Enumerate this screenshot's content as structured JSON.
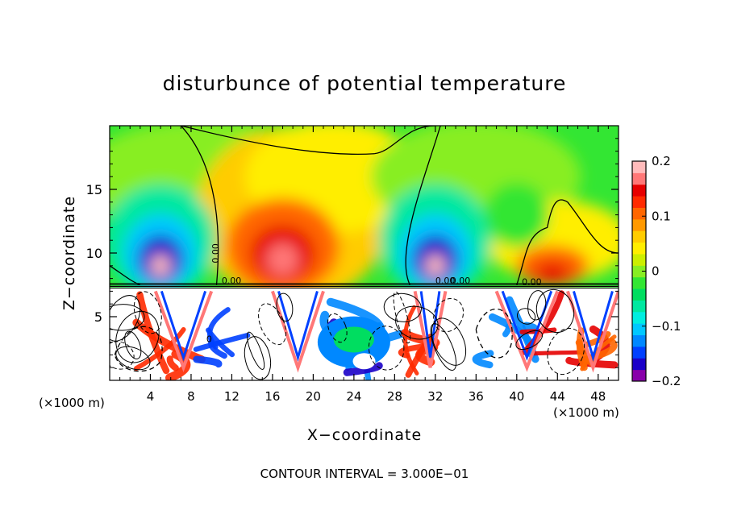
{
  "chart_data": {
    "type": "heatmap",
    "title": "disturbunce of potential temperature",
    "xlabel": "X−coordinate",
    "ylabel": "Z−coordinate",
    "x_unit": "(×1000 m)",
    "y_unit": "(×1000 m)",
    "xlim": [
      0,
      50
    ],
    "ylim": [
      0,
      20
    ],
    "x_ticks": [
      4,
      8,
      12,
      16,
      20,
      24,
      28,
      32,
      36,
      40,
      44,
      48
    ],
    "y_ticks": [
      5,
      10,
      15
    ],
    "colorbar": {
      "range": [
        -0.2,
        0.2
      ],
      "tick_values": [
        0.2,
        0.1,
        0,
        -0.1,
        -0.2
      ],
      "tick_labels": [
        "0.2",
        "0.1",
        "0",
        "−0.1",
        "−0.2"
      ],
      "colors": [
        "#8800aa",
        "#1a00c8",
        "#0040ff",
        "#0088ff",
        "#00c8ff",
        "#00eee0",
        "#00e8a0",
        "#00dd60",
        "#33e633",
        "#88ee22",
        "#ccee00",
        "#ffee00",
        "#ffcc00",
        "#ff9900",
        "#ff6600",
        "#ff2a00",
        "#e60000",
        "#ff7777",
        "#ffbbbb"
      ]
    },
    "contour_labels": [
      "0.00",
      "0.00",
      "0.00",
      "0.00",
      "0",
      "0.00"
    ],
    "features": [
      {
        "x": 5,
        "z": 9.5,
        "value": -0.2
      },
      {
        "x": 17,
        "z": 10,
        "value": 0.15
      },
      {
        "x": 32,
        "z": 9.5,
        "value": -0.2
      },
      {
        "x": 43,
        "z": 10,
        "value": 0.1
      }
    ],
    "footer": "CONTOUR INTERVAL = 3.000E−01"
  }
}
